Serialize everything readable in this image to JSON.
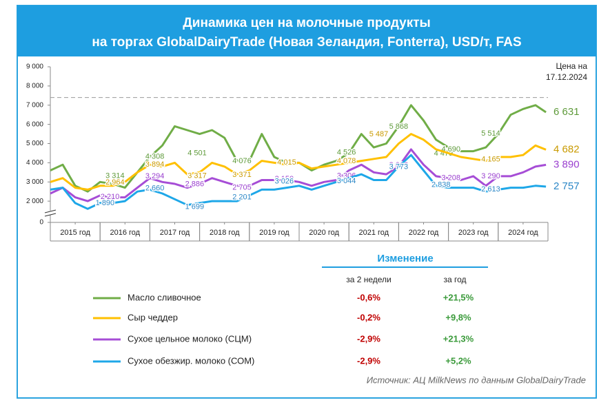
{
  "chart_data": {
    "type": "line",
    "title": [
      "Динамика цен на молочные продукты",
      "на торгах GlobalDairyTrade (Новая Зеландия, Fonterra), USD/т, FAS"
    ],
    "price_date_label": [
      "Цена на",
      "17.12.2024"
    ],
    "x": [
      2015,
      2015.25,
      2015.5,
      2015.75,
      2016,
      2016.25,
      2016.5,
      2016.75,
      2017,
      2017.25,
      2017.5,
      2017.75,
      2018,
      2018.25,
      2018.5,
      2018.75,
      2019,
      2019.25,
      2019.5,
      2019.75,
      2020,
      2020.25,
      2020.5,
      2020.75,
      2021,
      2021.25,
      2021.5,
      2021.75,
      2022,
      2022.25,
      2022.5,
      2022.75,
      2023,
      2023.25,
      2023.5,
      2023.75,
      2024,
      2024.25,
      2024.5,
      2024.75,
      2024.96
    ],
    "xlim": [
      2015,
      2025
    ],
    "xticks": [
      {
        "value": 2015.5,
        "label": "2015 год"
      },
      {
        "value": 2016.5,
        "label": "2016 год"
      },
      {
        "value": 2017.5,
        "label": "2017 год"
      },
      {
        "value": 2018.5,
        "label": "2018 год"
      },
      {
        "value": 2019.5,
        "label": "2019 год"
      },
      {
        "value": 2020.5,
        "label": "2020 год"
      },
      {
        "value": 2021.5,
        "label": "2021 год"
      },
      {
        "value": 2022.5,
        "label": "2022 год"
      },
      {
        "value": 2023.5,
        "label": "2023 год"
      },
      {
        "value": 2024.5,
        "label": "2024 год"
      }
    ],
    "ylim": [
      1000,
      9000
    ],
    "yticks": [
      0,
      {
        "value": 2000,
        "label": "2 000"
      },
      {
        "value": 3000,
        "label": "3 000"
      },
      {
        "value": 4000,
        "label": "4 000"
      },
      {
        "value": 5000,
        "label": "5 000"
      },
      {
        "value": 6000,
        "label": "6 000"
      },
      {
        "value": 7000,
        "label": "7 000"
      },
      {
        "value": 8000,
        "label": "8 000"
      },
      {
        "value": 9000,
        "label": "9 000"
      }
    ],
    "axis_break": true,
    "reference_line": 7400,
    "series": [
      {
        "name": "Масло сливочное",
        "color": "#70ad47",
        "label_color": "#5e9a3a",
        "values": [
          3600,
          3900,
          2800,
          2500,
          3000,
          2900,
          2700,
          3500,
          4300,
          4900,
          5900,
          5700,
          5500,
          5700,
          5300,
          4100,
          4100,
          5500,
          4300,
          4000,
          4000,
          3600,
          3900,
          4100,
          4500,
          5500,
          4800,
          5000,
          5900,
          7000,
          6200,
          5200,
          4800,
          4600,
          4600,
          4800,
          5500,
          6500,
          6800,
          7000,
          6631
        ],
        "end_label": {
          "value": 6631,
          "label": "6 631"
        },
        "annotations": [
          {
            "x": 2016.3,
            "value": 3314,
            "label": "3 314"
          },
          {
            "x": 2017.1,
            "value": 4308,
            "label": "4 308"
          },
          {
            "x": 2017.95,
            "value": 4501,
            "label": "4 501"
          },
          {
            "x": 2018.85,
            "value": 4076,
            "label": "4 076"
          },
          {
            "x": 2019.75,
            "value": 4029,
            "label": "4 029"
          },
          {
            "x": 2020.95,
            "value": 4526,
            "label": "4 526"
          },
          {
            "x": 2022.0,
            "value": 5868,
            "label": "5 868"
          },
          {
            "x": 2022.9,
            "value": 4479,
            "label": "4 479"
          },
          {
            "x": 2023.05,
            "value": 4690,
            "label": "4 690"
          },
          {
            "x": 2023.85,
            "value": 5514,
            "label": "5 514"
          }
        ]
      },
      {
        "name": "Сыр чеддер",
        "color": "#ffc000",
        "label_color": "#c99a00",
        "values": [
          3000,
          3200,
          2700,
          2600,
          2800,
          2800,
          3000,
          3500,
          3900,
          3800,
          4000,
          3400,
          3500,
          4000,
          3800,
          3400,
          3600,
          4100,
          4000,
          3900,
          4000,
          3700,
          3800,
          3900,
          4000,
          4100,
          4200,
          4300,
          5000,
          5500,
          5200,
          4700,
          4500,
          4300,
          4200,
          4100,
          4300,
          4300,
          4400,
          4900,
          4682
        ],
        "end_label": {
          "value": 4682,
          "label": "4 682"
        },
        "annotations": [
          {
            "x": 2016.3,
            "value": 2964,
            "label": "2 964"
          },
          {
            "x": 2017.1,
            "value": 3894,
            "label": "3 894"
          },
          {
            "x": 2017.95,
            "value": 3317,
            "label": "3 317"
          },
          {
            "x": 2018.85,
            "value": 3371,
            "label": "3 371"
          },
          {
            "x": 2019.75,
            "value": 4015,
            "label": "4 015"
          },
          {
            "x": 2020.95,
            "value": 4078,
            "label": "4 078"
          },
          {
            "x": 2021.6,
            "value": 5487,
            "label": "5 487"
          },
          {
            "x": 2023.85,
            "value": 4165,
            "label": "4 165"
          }
        ]
      },
      {
        "name": "Сухое цельное молоко (СЦМ)",
        "color": "#a64dd6",
        "label_color": "#9a3fcf",
        "values": [
          2400,
          2700,
          2200,
          2000,
          2300,
          2200,
          2200,
          2700,
          3200,
          3000,
          2900,
          2700,
          2900,
          3200,
          3000,
          2800,
          2800,
          3100,
          3100,
          3100,
          3000,
          2800,
          3000,
          3100,
          3600,
          3900,
          3500,
          3400,
          3800,
          4700,
          3900,
          3300,
          3200,
          3100,
          3300,
          2800,
          3300,
          3300,
          3500,
          3800,
          3890
        ],
        "end_label": {
          "value": 3890,
          "label": "3 890"
        },
        "annotations": [
          {
            "x": 2016.2,
            "value": 2210,
            "label": "2 210"
          },
          {
            "x": 2017.1,
            "value": 3294,
            "label": "3 294"
          },
          {
            "x": 2017.9,
            "value": 2886,
            "label": "2 886"
          },
          {
            "x": 2018.85,
            "value": 2705,
            "label": "2 705"
          },
          {
            "x": 2019.7,
            "value": 3150,
            "label": "3 150"
          },
          {
            "x": 2020.95,
            "value": 3306,
            "label": "3 306"
          },
          {
            "x": 2022.0,
            "value": 3866,
            "label": "3 866"
          },
          {
            "x": 2023.05,
            "value": 3208,
            "label": "3 208"
          },
          {
            "x": 2023.85,
            "value": 3290,
            "label": "3 290"
          }
        ]
      },
      {
        "name": "Сухое обезжир. молоко (СОМ)",
        "color": "#1ea7e8",
        "label_color": "#2a86c6",
        "values": [
          2600,
          2700,
          1900,
          1600,
          1900,
          1900,
          2000,
          2500,
          2600,
          2400,
          2100,
          1800,
          1900,
          2000,
          2000,
          2000,
          2300,
          2600,
          2600,
          2700,
          2800,
          2600,
          2800,
          3000,
          3200,
          3400,
          3100,
          3100,
          3800,
          4400,
          3600,
          2800,
          2700,
          2700,
          2700,
          2500,
          2600,
          2700,
          2700,
          2800,
          2757
        ],
        "end_label": {
          "value": 2757,
          "label": "2 757"
        },
        "annotations": [
          {
            "x": 2016.1,
            "value": 1890,
            "label": "1 890"
          },
          {
            "x": 2017.1,
            "value": 2660,
            "label": "2 660"
          },
          {
            "x": 2017.9,
            "value": 1699,
            "label": "1 699"
          },
          {
            "x": 2018.85,
            "value": 2201,
            "label": "2 201"
          },
          {
            "x": 2019.7,
            "value": 3026,
            "label": "3 026"
          },
          {
            "x": 2020.95,
            "value": 3044,
            "label": "3 044"
          },
          {
            "x": 2022.0,
            "value": 3773,
            "label": "3 773"
          },
          {
            "x": 2022.85,
            "value": 2838,
            "label": "2 838"
          },
          {
            "x": 2023.85,
            "value": 2613,
            "label": "2 613"
          }
        ]
      }
    ],
    "change_table": {
      "title": "Изменение",
      "columns": [
        "за 2 недели",
        "за год"
      ],
      "rows": [
        [
          "-0,6%",
          "+21,5%"
        ],
        [
          "-0,2%",
          "+9,8%"
        ],
        [
          "-2,9%",
          "+21,3%"
        ],
        [
          "-2,9%",
          "+5,2%"
        ]
      ]
    },
    "source": "Источник: АЦ MilkNews по данным GlobalDairyTrade"
  }
}
